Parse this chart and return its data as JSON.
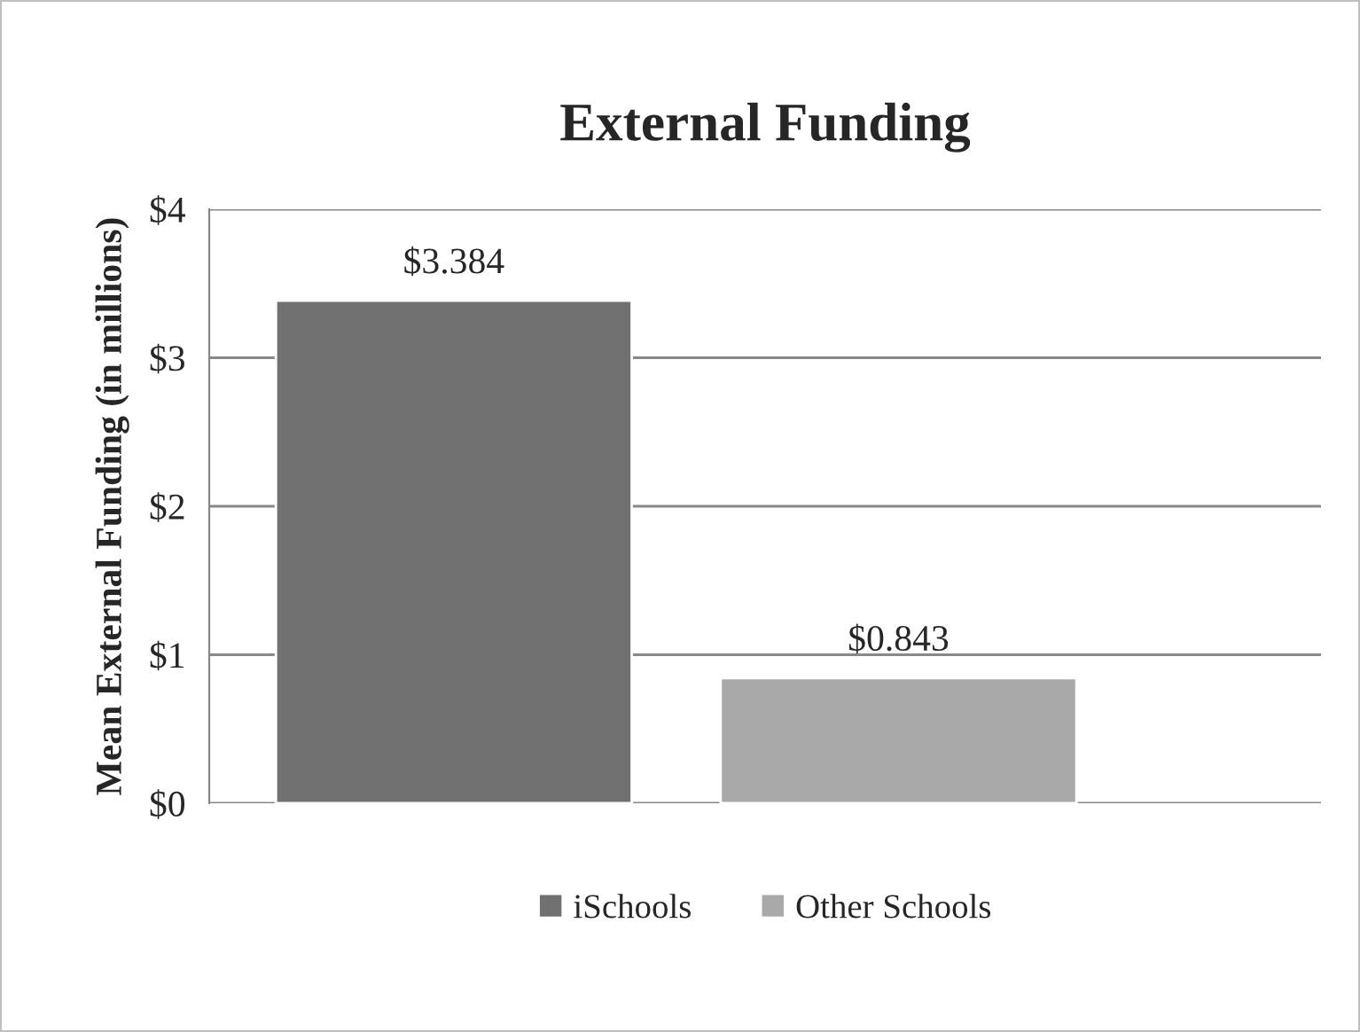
{
  "chart_data": {
    "type": "bar",
    "title": "External Funding",
    "ylabel": "Mean External Funding (in millions)",
    "categories": [
      null
    ],
    "series": [
      {
        "name": "iSchools",
        "color": "#717171",
        "values": [
          3.384
        ],
        "value_labels": [
          "$3.384"
        ]
      },
      {
        "name": "Other Schools",
        "color": "#a9a9a9",
        "values": [
          0.843
        ],
        "value_labels": [
          "$0.843"
        ]
      }
    ],
    "ylim": [
      0,
      4
    ],
    "yticks": [
      {
        "value": 0,
        "label": "$0"
      },
      {
        "value": 1,
        "label": "$1"
      },
      {
        "value": 2,
        "label": "$2"
      },
      {
        "value": 3,
        "label": "$3"
      },
      {
        "value": 4,
        "label": "$4"
      }
    ],
    "grid": "y",
    "legend": "bottom"
  }
}
